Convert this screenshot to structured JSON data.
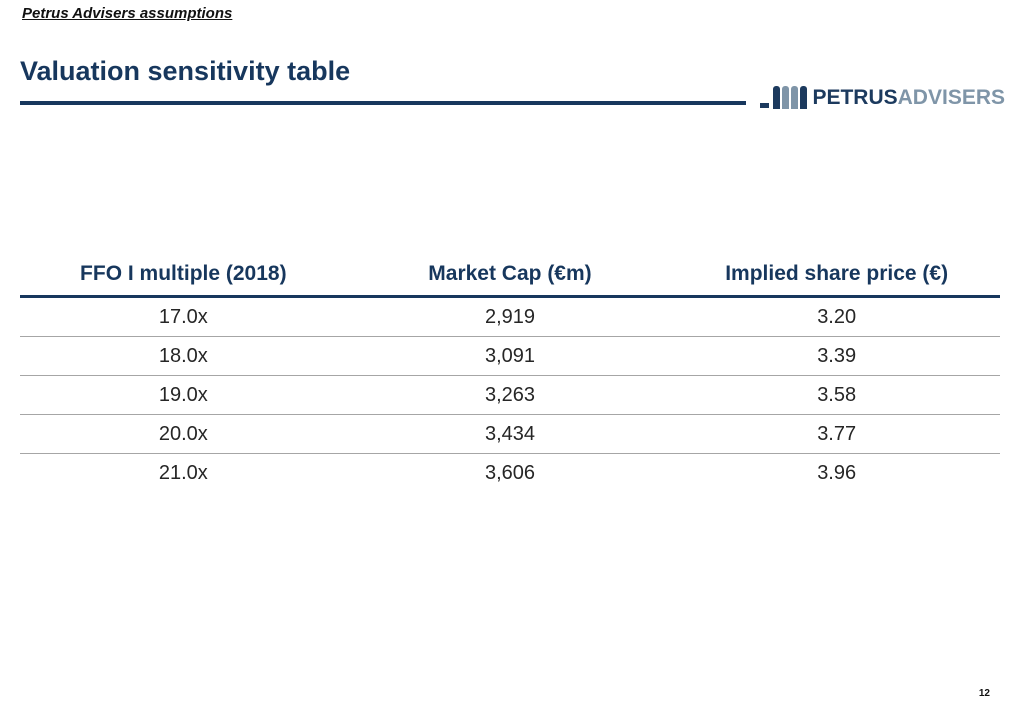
{
  "header": {
    "eyebrow": "Petrus Advisers assumptions",
    "title": "Valuation sensitivity table"
  },
  "logo": {
    "primary": "PETRUS",
    "secondary": "ADVISERS",
    "icon": "logo-bars-icon"
  },
  "table": {
    "columns": [
      "FFO I multiple (2018)",
      "Market Cap (€m)",
      "Implied share price (€)"
    ],
    "rows": [
      [
        "17.0x",
        "2,919",
        "3.20"
      ],
      [
        "18.0x",
        "3,091",
        "3.39"
      ],
      [
        "19.0x",
        "3,263",
        "3.58"
      ],
      [
        "20.0x",
        "3,434",
        "3.77"
      ],
      [
        "21.0x",
        "3,606",
        "3.96"
      ]
    ]
  },
  "footer": {
    "page_number": "12"
  },
  "colors": {
    "navy": "#17375d",
    "logo_primary": "#1c3a5e",
    "logo_secondary": "#7f95a8",
    "row_divider": "#a6a6a6",
    "body_text": "#262626"
  }
}
